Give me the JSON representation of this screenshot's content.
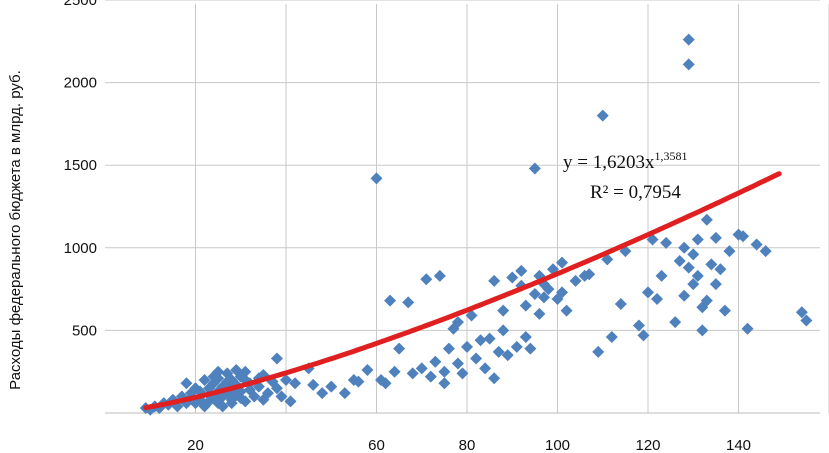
{
  "chart_data": {
    "type": "scatter",
    "title": "",
    "xlabel": "",
    "ylabel": "Расходы федерального бюджета в млрд. руб.",
    "xlim": [
      0,
      160
    ],
    "ylim": [
      0,
      2500
    ],
    "x_ticks": [
      20,
      60,
      80,
      100,
      120,
      140
    ],
    "x_tick_labels": [
      "20",
      "60",
      "80",
      "100",
      "120",
      "140"
    ],
    "y_ticks": [
      500,
      1000,
      1500,
      2000,
      2500
    ],
    "y_tick_labels": [
      "500",
      "1000",
      "1500",
      "2000",
      "2500"
    ],
    "grid": true,
    "marker_color": "#4f81bd",
    "trend_color": "#e02020",
    "trendline": {
      "type": "power",
      "coef": 1.6203,
      "exponent": 1.3581,
      "x_range": [
        9,
        149
      ],
      "equation_prefix": "y = 1,6203x",
      "equation_exponent": "1,3581",
      "r2_label": "R² = 0,7954"
    },
    "series": [
      {
        "points": [
          [
            9,
            30
          ],
          [
            10,
            20
          ],
          [
            11,
            40
          ],
          [
            12,
            30
          ],
          [
            13,
            60
          ],
          [
            14,
            50
          ],
          [
            15,
            80
          ],
          [
            16,
            40
          ],
          [
            17,
            100
          ],
          [
            18,
            60
          ],
          [
            18,
            180
          ],
          [
            19,
            120
          ],
          [
            19,
            90
          ],
          [
            20,
            150
          ],
          [
            20,
            60
          ],
          [
            21,
            80
          ],
          [
            21,
            130
          ],
          [
            22,
            40
          ],
          [
            22,
            200
          ],
          [
            23,
            110
          ],
          [
            23,
            150
          ],
          [
            23,
            70
          ],
          [
            24,
            90
          ],
          [
            24,
            180
          ],
          [
            24,
            220
          ],
          [
            25,
            60
          ],
          [
            25,
            130
          ],
          [
            25,
            210
          ],
          [
            25,
            250
          ],
          [
            26,
            100
          ],
          [
            26,
            160
          ],
          [
            26,
            40
          ],
          [
            27,
            190
          ],
          [
            27,
            120
          ],
          [
            27,
            240
          ],
          [
            28,
            80
          ],
          [
            28,
            150
          ],
          [
            28,
            200
          ],
          [
            28,
            60
          ],
          [
            29,
            260
          ],
          [
            29,
            110
          ],
          [
            29,
            170
          ],
          [
            30,
            220
          ],
          [
            30,
            90
          ],
          [
            30,
            130
          ],
          [
            31,
            200
          ],
          [
            31,
            250
          ],
          [
            31,
            70
          ],
          [
            32,
            140
          ],
          [
            32,
            180
          ],
          [
            33,
            100
          ],
          [
            34,
            160
          ],
          [
            34,
            210
          ],
          [
            35,
            80
          ],
          [
            35,
            230
          ],
          [
            36,
            120
          ],
          [
            37,
            190
          ],
          [
            38,
            150
          ],
          [
            38,
            330
          ],
          [
            39,
            100
          ],
          [
            40,
            200
          ],
          [
            41,
            70
          ],
          [
            42,
            180
          ],
          [
            45,
            270
          ],
          [
            46,
            170
          ],
          [
            48,
            120
          ],
          [
            50,
            160
          ],
          [
            53,
            120
          ],
          [
            55,
            200
          ],
          [
            56,
            190
          ],
          [
            58,
            260
          ],
          [
            60,
            1420
          ],
          [
            61,
            200
          ],
          [
            62,
            180
          ],
          [
            63,
            680
          ],
          [
            64,
            250
          ],
          [
            65,
            390
          ],
          [
            67,
            670
          ],
          [
            68,
            240
          ],
          [
            70,
            270
          ],
          [
            71,
            810
          ],
          [
            72,
            220
          ],
          [
            73,
            310
          ],
          [
            74,
            830
          ],
          [
            75,
            180
          ],
          [
            75,
            250
          ],
          [
            76,
            390
          ],
          [
            77,
            510
          ],
          [
            78,
            300
          ],
          [
            78,
            550
          ],
          [
            79,
            240
          ],
          [
            80,
            400
          ],
          [
            81,
            590
          ],
          [
            82,
            330
          ],
          [
            83,
            440
          ],
          [
            84,
            270
          ],
          [
            85,
            450
          ],
          [
            86,
            210
          ],
          [
            86,
            800
          ],
          [
            87,
            370
          ],
          [
            88,
            500
          ],
          [
            88,
            620
          ],
          [
            89,
            350
          ],
          [
            90,
            820
          ],
          [
            91,
            400
          ],
          [
            92,
            770
          ],
          [
            92,
            860
          ],
          [
            93,
            460
          ],
          [
            93,
            650
          ],
          [
            94,
            390
          ],
          [
            95,
            720
          ],
          [
            95,
            1480
          ],
          [
            96,
            600
          ],
          [
            96,
            830
          ],
          [
            97,
            700
          ],
          [
            97,
            780
          ],
          [
            98,
            750
          ],
          [
            99,
            870
          ],
          [
            100,
            690
          ],
          [
            101,
            730
          ],
          [
            101,
            910
          ],
          [
            102,
            620
          ],
          [
            104,
            800
          ],
          [
            106,
            830
          ],
          [
            107,
            840
          ],
          [
            109,
            370
          ],
          [
            110,
            1800
          ],
          [
            111,
            930
          ],
          [
            112,
            460
          ],
          [
            114,
            660
          ],
          [
            115,
            980
          ],
          [
            118,
            530
          ],
          [
            119,
            470
          ],
          [
            120,
            730
          ],
          [
            121,
            1050
          ],
          [
            122,
            690
          ],
          [
            123,
            830
          ],
          [
            124,
            1030
          ],
          [
            126,
            550
          ],
          [
            127,
            920
          ],
          [
            128,
            710
          ],
          [
            128,
            1000
          ],
          [
            129,
            2110
          ],
          [
            129,
            2260
          ],
          [
            129,
            880
          ],
          [
            130,
            780
          ],
          [
            130,
            960
          ],
          [
            131,
            830
          ],
          [
            131,
            1050
          ],
          [
            132,
            500
          ],
          [
            132,
            640
          ],
          [
            133,
            1170
          ],
          [
            133,
            680
          ],
          [
            134,
            900
          ],
          [
            135,
            1060
          ],
          [
            135,
            780
          ],
          [
            136,
            870
          ],
          [
            137,
            620
          ],
          [
            138,
            980
          ],
          [
            140,
            1080
          ],
          [
            141,
            1070
          ],
          [
            142,
            510
          ],
          [
            144,
            1020
          ],
          [
            146,
            980
          ],
          [
            154,
            610
          ],
          [
            155,
            560
          ]
        ]
      }
    ]
  }
}
